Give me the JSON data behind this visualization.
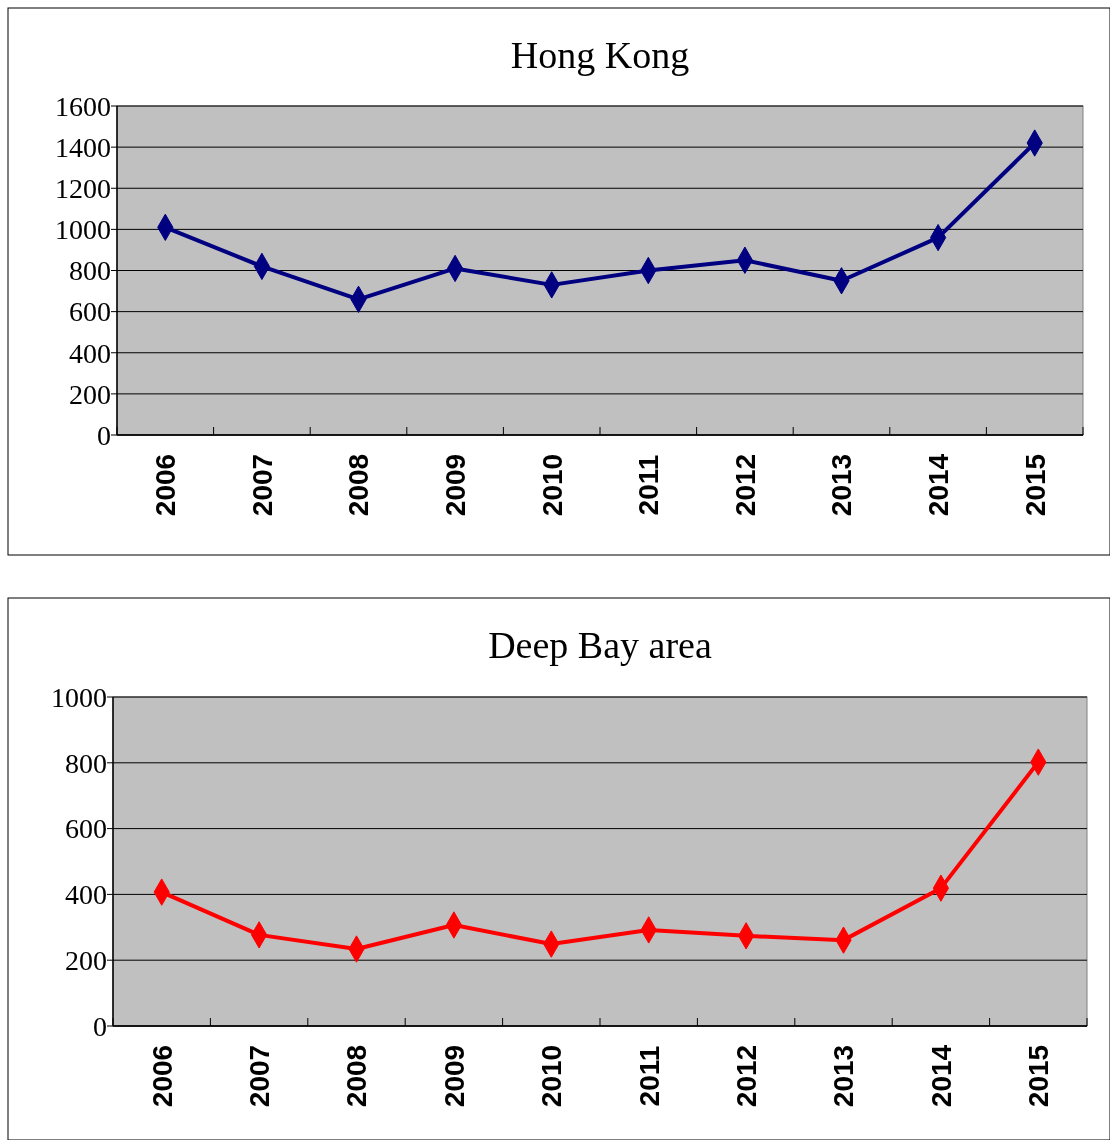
{
  "chart_data": [
    {
      "type": "line",
      "title": "Hong Kong",
      "categories": [
        "2006",
        "2007",
        "2008",
        "2009",
        "2010",
        "2011",
        "2012",
        "2013",
        "2014",
        "2015"
      ],
      "series": [
        {
          "color": "#000080",
          "values": [
            1010,
            820,
            660,
            810,
            730,
            800,
            850,
            750,
            960,
            1420
          ]
        }
      ],
      "ylim": [
        0,
        1600
      ],
      "yticks": [
        0,
        200,
        400,
        600,
        800,
        1000,
        1200,
        1400,
        1600
      ],
      "grid": "y",
      "marker": "diamond"
    },
    {
      "type": "line",
      "title": "Deep Bay area",
      "categories": [
        "2006",
        "2007",
        "2008",
        "2009",
        "2010",
        "2011",
        "2012",
        "2013",
        "2014",
        "2015"
      ],
      "series": [
        {
          "color": "#ff0000",
          "values": [
            407,
            277,
            234,
            307,
            249,
            292,
            274,
            261,
            419,
            802
          ]
        }
      ],
      "ylim": [
        0,
        1000
      ],
      "yticks": [
        0,
        200,
        400,
        600,
        800,
        1000
      ],
      "grid": "y",
      "marker": "diamond"
    }
  ]
}
